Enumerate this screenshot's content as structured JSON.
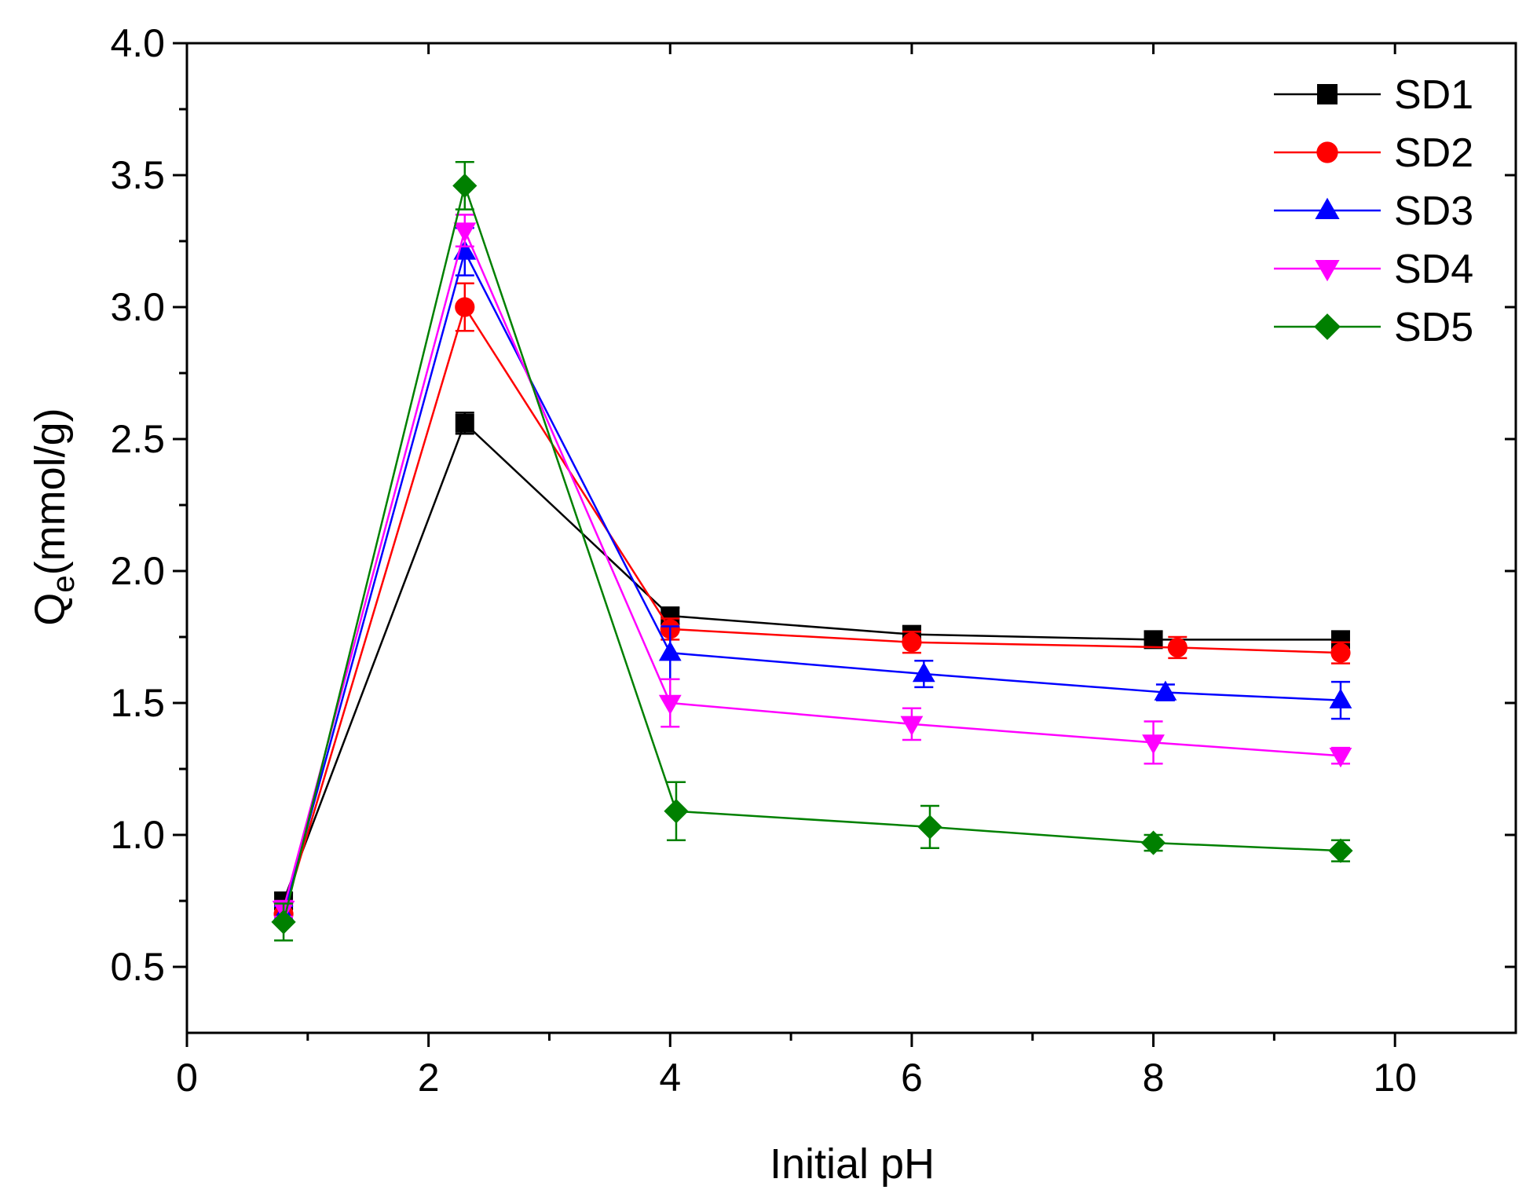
{
  "chart_data": {
    "type": "line",
    "title": "",
    "xlabel": "Initial pH",
    "ylabel_main": "Q",
    "ylabel_sub": "e",
    "ylabel_rest": "(mmol/g)",
    "xlim": [
      0,
      11
    ],
    "ylim": [
      0.25,
      4.0
    ],
    "x_ticks": [
      0,
      2,
      4,
      6,
      8,
      10
    ],
    "x_tick_labels": [
      "0",
      "2",
      "4",
      "6",
      "8",
      "10"
    ],
    "y_ticks": [
      0.5,
      1.0,
      1.5,
      2.0,
      2.5,
      3.0,
      3.5,
      4.0
    ],
    "y_tick_labels": [
      "0.5",
      "1.0",
      "1.5",
      "2.0",
      "2.5",
      "3.0",
      "3.5",
      "4.0"
    ],
    "legend_position": "top-right",
    "series": [
      {
        "name": "SD1",
        "color": "#000000",
        "marker": "square",
        "x": [
          0.8,
          2.3,
          4.0,
          6.0,
          8.0,
          9.55
        ],
        "y": [
          0.75,
          2.56,
          1.83,
          1.76,
          1.74,
          1.74
        ],
        "err": [
          0.03,
          0.04,
          0.03,
          0.03,
          0.03,
          0.03
        ]
      },
      {
        "name": "SD2",
        "color": "#ff0000",
        "marker": "circle",
        "x": [
          0.8,
          2.3,
          4.0,
          6.0,
          8.2,
          9.55
        ],
        "y": [
          0.7,
          3.0,
          1.78,
          1.73,
          1.71,
          1.69
        ],
        "err": [
          0.03,
          0.09,
          0.04,
          0.04,
          0.04,
          0.04
        ]
      },
      {
        "name": "SD3",
        "color": "#0000ff",
        "marker": "triangle-up",
        "x": [
          0.8,
          2.3,
          4.0,
          6.1,
          8.1,
          9.55
        ],
        "y": [
          0.7,
          3.21,
          1.69,
          1.61,
          1.54,
          1.51
        ],
        "err": [
          0.03,
          0.09,
          0.1,
          0.05,
          0.03,
          0.07
        ]
      },
      {
        "name": "SD4",
        "color": "#ff00ff",
        "marker": "triangle-down",
        "x": [
          0.8,
          2.3,
          4.0,
          6.0,
          8.0,
          9.55
        ],
        "y": [
          0.72,
          3.29,
          1.5,
          1.42,
          1.35,
          1.3
        ],
        "err": [
          0.03,
          0.06,
          0.09,
          0.06,
          0.08,
          0.03
        ]
      },
      {
        "name": "SD5",
        "color": "#008000",
        "marker": "diamond",
        "x": [
          0.8,
          2.3,
          4.05,
          6.15,
          8.0,
          9.55
        ],
        "y": [
          0.67,
          3.46,
          1.09,
          1.03,
          0.97,
          0.94
        ],
        "err": [
          0.07,
          0.09,
          0.11,
          0.08,
          0.03,
          0.04
        ]
      }
    ]
  }
}
